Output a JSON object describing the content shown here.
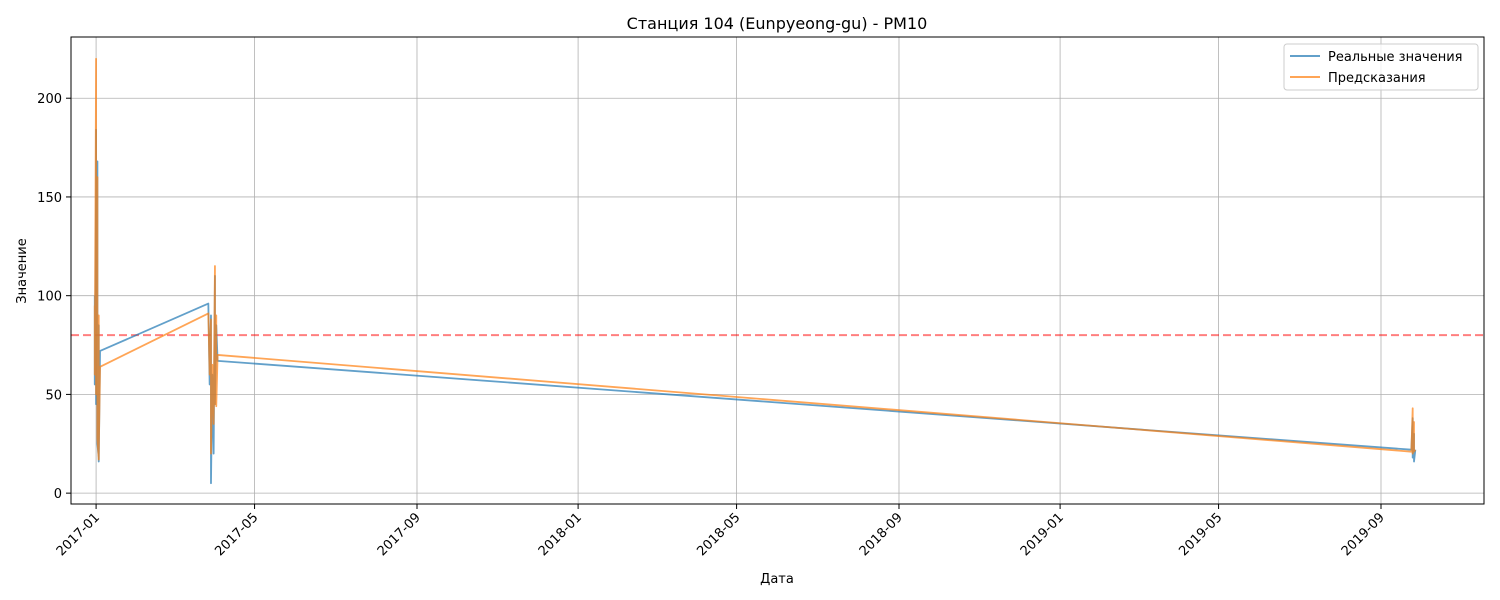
{
  "chart_data": {
    "type": "line",
    "title": "Станция 104 (Eunpyeong-gu) - PM10",
    "xlabel": "Дата",
    "ylabel": "Значение",
    "x_type": "date",
    "xlim": [
      "2016-12-13",
      "2019-11-18"
    ],
    "ylim": [
      -5.5,
      231
    ],
    "x_ticks": [
      "2017-01",
      "2017-05",
      "2017-09",
      "2018-01",
      "2018-05",
      "2018-09",
      "2019-01",
      "2019-05",
      "2019-09"
    ],
    "y_ticks": [
      0,
      50,
      100,
      150,
      200
    ],
    "grid": true,
    "legend_position": "top-right",
    "threshold": {
      "value": 80,
      "color": "#ff0000",
      "style": "dashed"
    },
    "series": [
      {
        "name": "Реальные значения",
        "color": "#1f77b4",
        "points": [
          [
            "2016-12-31",
            100
          ],
          [
            "2016-12-31",
            55
          ],
          [
            "2017-01-01",
            155
          ],
          [
            "2017-01-01",
            45
          ],
          [
            "2017-01-01",
            184
          ],
          [
            "2017-01-01",
            60
          ],
          [
            "2017-01-02",
            120
          ],
          [
            "2017-01-02",
            30
          ],
          [
            "2017-01-02",
            168
          ],
          [
            "2017-01-02",
            25
          ],
          [
            "2017-01-03",
            18
          ],
          [
            "2017-01-03",
            85
          ],
          [
            "2017-01-03",
            16
          ],
          [
            "2017-01-04",
            72
          ],
          [
            "2017-03-27",
            96
          ],
          [
            "2017-03-28",
            55
          ],
          [
            "2017-03-29",
            90
          ],
          [
            "2017-03-29",
            5
          ],
          [
            "2017-03-30",
            60
          ],
          [
            "2017-03-31",
            20
          ],
          [
            "2017-04-01",
            110
          ],
          [
            "2017-04-01",
            45
          ],
          [
            "2017-04-02",
            85
          ],
          [
            "2017-04-03",
            67
          ],
          [
            "2019-09-24",
            22
          ],
          [
            "2019-09-25",
            38
          ],
          [
            "2019-09-25",
            18
          ],
          [
            "2019-09-26",
            30
          ],
          [
            "2019-09-26",
            16
          ],
          [
            "2019-09-27",
            22
          ]
        ]
      },
      {
        "name": "Предсказания",
        "color": "#ff7f0e",
        "points": [
          [
            "2016-12-31",
            95
          ],
          [
            "2016-12-31",
            60
          ],
          [
            "2017-01-01",
            220
          ],
          [
            "2017-01-01",
            50
          ],
          [
            "2017-01-01",
            200
          ],
          [
            "2017-01-01",
            70
          ],
          [
            "2017-01-02",
            140
          ],
          [
            "2017-01-02",
            35
          ],
          [
            "2017-01-02",
            160
          ],
          [
            "2017-01-02",
            28
          ],
          [
            "2017-01-03",
            17
          ],
          [
            "2017-01-03",
            90
          ],
          [
            "2017-01-03",
            20
          ],
          [
            "2017-01-04",
            64
          ],
          [
            "2017-03-27",
            91
          ],
          [
            "2017-03-28",
            60
          ],
          [
            "2017-03-29",
            88
          ],
          [
            "2017-03-29",
            20
          ],
          [
            "2017-03-30",
            65
          ],
          [
            "2017-03-31",
            35
          ],
          [
            "2017-04-01",
            115
          ],
          [
            "2017-04-01",
            45
          ],
          [
            "2017-04-02",
            90
          ],
          [
            "2017-04-02",
            44
          ],
          [
            "2017-04-03",
            70
          ],
          [
            "2019-09-24",
            21
          ],
          [
            "2019-09-25",
            43
          ],
          [
            "2019-09-25",
            20
          ],
          [
            "2019-09-26",
            36
          ],
          [
            "2019-09-26",
            21
          ],
          [
            "2019-09-27",
            22
          ]
        ]
      }
    ]
  }
}
